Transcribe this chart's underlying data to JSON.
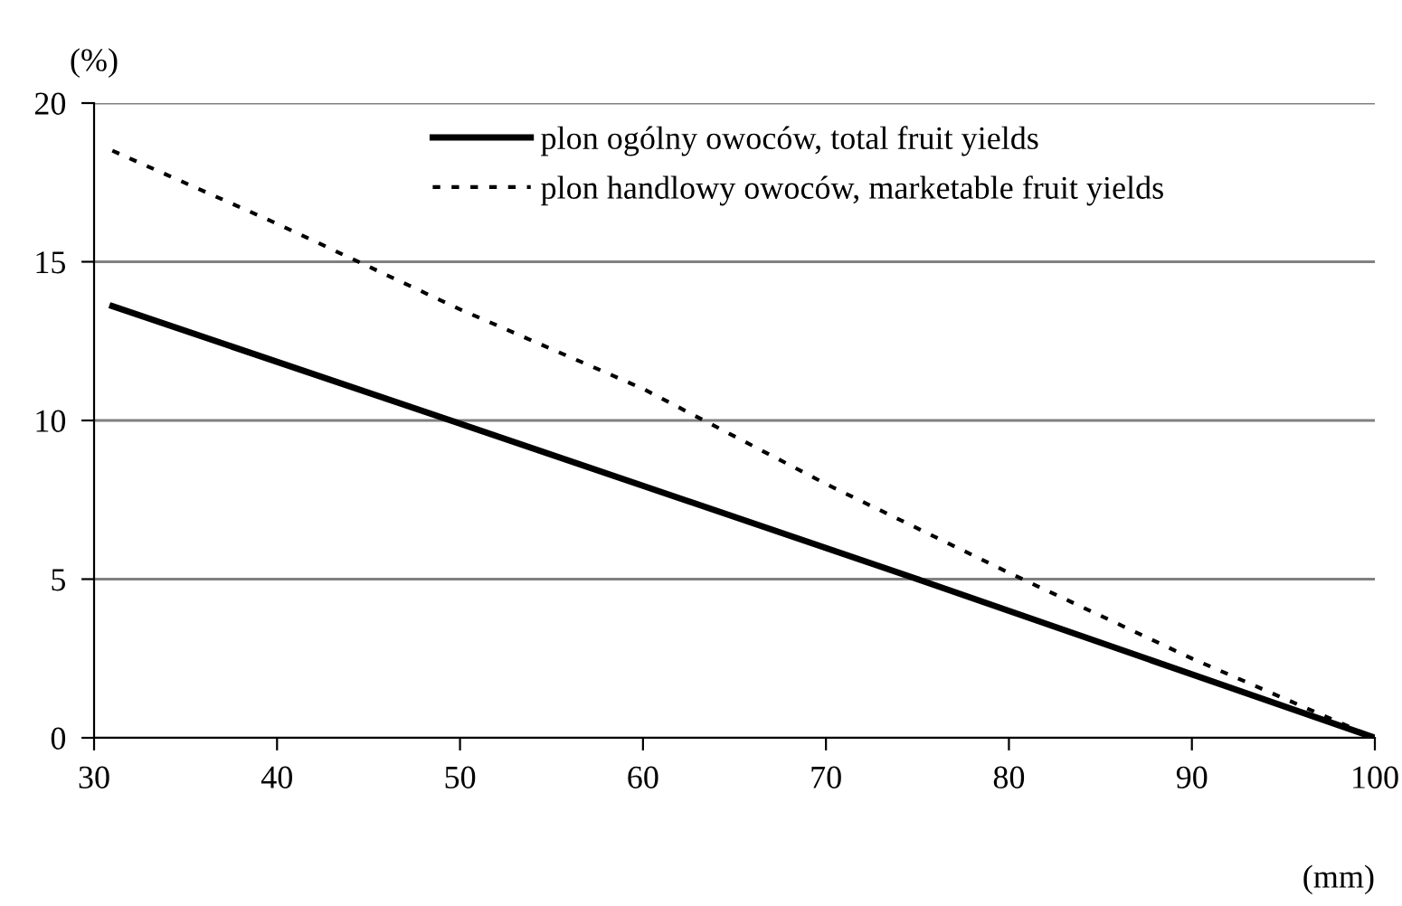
{
  "chart_data": {
    "type": "line",
    "xlabel": "(mm)",
    "ylabel": "(%)",
    "xlim": [
      30,
      100
    ],
    "xticks": [
      30,
      40,
      50,
      60,
      70,
      80,
      90,
      100
    ],
    "ylim": [
      0,
      20
    ],
    "yticks": [
      0,
      5,
      10,
      15,
      20
    ],
    "grid": "y",
    "legend": "top",
    "marker": "none",
    "series": [
      {
        "name": "plon ogólny owoców, total fruit yields",
        "color": "#000000",
        "line_style": "solid",
        "x": [
          31,
          50,
          75,
          100
        ],
        "values": [
          13.6,
          9.9,
          5.0,
          0.0
        ]
      },
      {
        "name": "plon handlowy owoców, marketable fruit yields",
        "color": "#000000",
        "line_style": "dotted",
        "x": [
          31,
          40,
          50,
          60,
          70,
          80,
          90,
          100
        ],
        "values": [
          18.5,
          16.2,
          13.5,
          11.0,
          8.0,
          5.2,
          2.5,
          0.0
        ]
      }
    ]
  }
}
